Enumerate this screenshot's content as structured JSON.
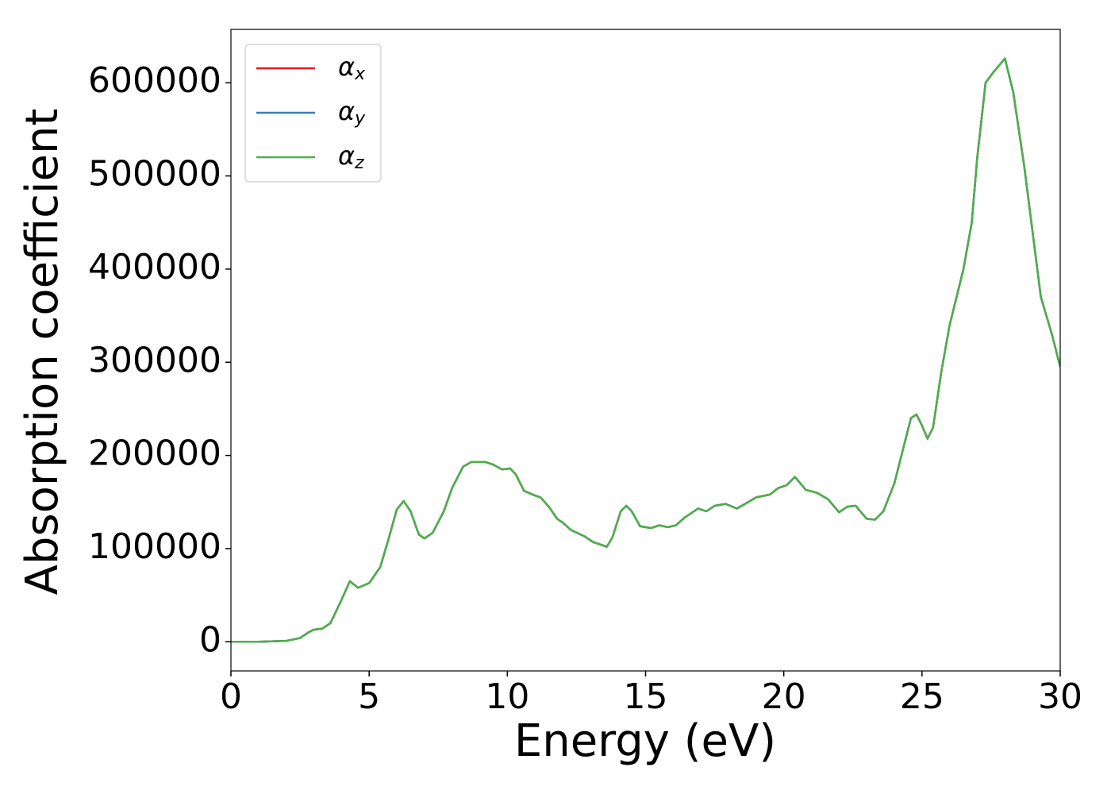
{
  "chart_data": {
    "type": "line",
    "x_label": "Energy (eV)",
    "y_label": "Absorption coefficient",
    "x": [
      0,
      1,
      2,
      2.5,
      2.8,
      3.0,
      3.3,
      3.6,
      4.0,
      4.3,
      4.6,
      5.0,
      5.4,
      5.7,
      6.0,
      6.25,
      6.5,
      6.8,
      7.0,
      7.3,
      7.7,
      8.0,
      8.4,
      8.7,
      9.2,
      9.5,
      9.8,
      10.1,
      10.3,
      10.6,
      11.0,
      11.2,
      11.5,
      11.8,
      12.0,
      12.3,
      12.8,
      13.1,
      13.6,
      13.8,
      14.1,
      14.3,
      14.5,
      14.8,
      15.2,
      15.5,
      15.8,
      16.1,
      16.4,
      16.9,
      17.2,
      17.5,
      17.9,
      18.3,
      18.6,
      19.0,
      19.5,
      19.8,
      20.1,
      20.4,
      20.8,
      21.2,
      21.6,
      22.0,
      22.3,
      22.6,
      23.0,
      23.3,
      23.6,
      24.0,
      24.3,
      24.6,
      24.8,
      25.0,
      25.2,
      25.4,
      25.7,
      26.0,
      26.5,
      26.8,
      27.0,
      27.3,
      27.6,
      28.0,
      28.3,
      28.7,
      29.0,
      29.3,
      29.7,
      30.0
    ],
    "series": [
      {
        "name": "αx",
        "color": "#e41a1c",
        "values": [
          0,
          0,
          1000,
          4000,
          10000,
          13000,
          14000,
          20000,
          45000,
          65000,
          58000,
          63000,
          80000,
          110000,
          142000,
          151000,
          140000,
          115000,
          111000,
          117000,
          140000,
          165000,
          188000,
          193000,
          193000,
          190000,
          185000,
          186000,
          180000,
          162000,
          157000,
          155000,
          145000,
          132000,
          128000,
          120000,
          113000,
          107000,
          102000,
          112000,
          140000,
          146000,
          140000,
          124000,
          122000,
          125000,
          123000,
          125000,
          133000,
          143000,
          140000,
          146000,
          148000,
          143000,
          148000,
          155000,
          158000,
          165000,
          168000,
          177000,
          163000,
          160000,
          153000,
          139000,
          145000,
          146000,
          132000,
          131000,
          140000,
          170000,
          205000,
          240000,
          244000,
          232000,
          218000,
          230000,
          290000,
          340000,
          400000,
          450000,
          520000,
          600000,
          612000,
          626000,
          590000,
          510000,
          440000,
          370000,
          330000,
          295000
        ]
      },
      {
        "name": "αy",
        "color": "#377eb8",
        "values": [
          0,
          0,
          1000,
          4000,
          10000,
          13000,
          14000,
          20000,
          45000,
          65000,
          58000,
          63000,
          80000,
          110000,
          142000,
          151000,
          140000,
          115000,
          111000,
          117000,
          140000,
          165000,
          188000,
          193000,
          193000,
          190000,
          185000,
          186000,
          180000,
          162000,
          157000,
          155000,
          145000,
          132000,
          128000,
          120000,
          113000,
          107000,
          102000,
          112000,
          140000,
          146000,
          140000,
          124000,
          122000,
          125000,
          123000,
          125000,
          133000,
          143000,
          140000,
          146000,
          148000,
          143000,
          148000,
          155000,
          158000,
          165000,
          168000,
          177000,
          163000,
          160000,
          153000,
          139000,
          145000,
          146000,
          132000,
          131000,
          140000,
          170000,
          205000,
          240000,
          244000,
          232000,
          218000,
          230000,
          290000,
          340000,
          400000,
          450000,
          520000,
          600000,
          612000,
          626000,
          590000,
          510000,
          440000,
          370000,
          330000,
          295000
        ]
      },
      {
        "name": "αz",
        "color": "#4daf4a",
        "values": [
          0,
          0,
          1000,
          4000,
          10000,
          13000,
          14000,
          20000,
          45000,
          65000,
          58000,
          63000,
          80000,
          110000,
          142000,
          151000,
          140000,
          115000,
          111000,
          117000,
          140000,
          165000,
          188000,
          193000,
          193000,
          190000,
          185000,
          186000,
          180000,
          162000,
          157000,
          155000,
          145000,
          132000,
          128000,
          120000,
          113000,
          107000,
          102000,
          112000,
          140000,
          146000,
          140000,
          124000,
          122000,
          125000,
          123000,
          125000,
          133000,
          143000,
          140000,
          146000,
          148000,
          143000,
          148000,
          155000,
          158000,
          165000,
          168000,
          177000,
          163000,
          160000,
          153000,
          139000,
          145000,
          146000,
          132000,
          131000,
          140000,
          170000,
          205000,
          240000,
          244000,
          232000,
          218000,
          230000,
          290000,
          340000,
          400000,
          450000,
          520000,
          600000,
          612000,
          626000,
          590000,
          510000,
          440000,
          370000,
          330000,
          295000
        ]
      }
    ],
    "xlim": [
      0,
      30
    ],
    "xticks": [
      0,
      5,
      10,
      15,
      20,
      25,
      30
    ],
    "ylim": [
      -31300,
      657300
    ],
    "yticks": [
      0,
      100000,
      200000,
      300000,
      400000,
      500000,
      600000
    ],
    "legend": "upper left",
    "grid": false
  }
}
